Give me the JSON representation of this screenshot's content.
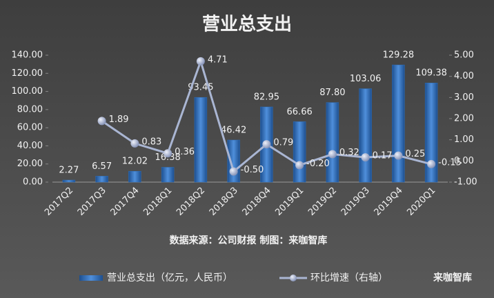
{
  "chart_data": {
    "type": "bar_line",
    "title": "营业总支出",
    "source": "数据来源：公司财报 制图：来咖智库",
    "watermark": "来咖智库",
    "categories": [
      "2017Q2",
      "2017Q3",
      "2017Q4",
      "2018Q1",
      "2018Q2",
      "2018Q3",
      "2018Q4",
      "2019Q1",
      "2019Q2",
      "2019Q3",
      "2019Q4",
      "2020Q1"
    ],
    "series": [
      {
        "name": "营业总支出（亿元，人民币）",
        "type": "bar",
        "color": "#2f6fba",
        "values": [
          2.27,
          6.57,
          12.02,
          16.38,
          93.45,
          46.42,
          82.95,
          66.66,
          87.8,
          103.06,
          129.28,
          109.38
        ],
        "value_labels": [
          "2.27",
          "6.57",
          "12.02",
          "16.38",
          "93.45",
          "46.42",
          "82.95",
          "66.66",
          "87.80",
          "103.06",
          "129.28",
          "109.38"
        ]
      },
      {
        "name": "环比增速（右轴）",
        "type": "line",
        "axis": "y2",
        "color": "#aab6d3",
        "values": [
          null,
          1.89,
          0.83,
          0.36,
          4.71,
          -0.5,
          0.79,
          -0.2,
          0.32,
          0.17,
          0.25,
          -0.15
        ],
        "value_labels": [
          null,
          "1.89",
          "0.83",
          "0.36",
          "4.71",
          "-0.50",
          "0.79",
          "-0.20",
          "0.32",
          "0.17",
          "0.25",
          "-0.15"
        ]
      }
    ],
    "ylim": [
      0,
      140
    ],
    "yticks": [
      {
        "value": 0,
        "label": "0.00"
      },
      {
        "value": 20,
        "label": "20.00"
      },
      {
        "value": 40,
        "label": "40.00"
      },
      {
        "value": 60,
        "label": "60.00"
      },
      {
        "value": 80,
        "label": "80.00"
      },
      {
        "value": 100,
        "label": "100.00"
      },
      {
        "value": 120,
        "label": "120.00"
      },
      {
        "value": 140,
        "label": "140.00"
      }
    ],
    "y2lim": [
      -1,
      5
    ],
    "y2ticks": [
      {
        "value": -1,
        "label": "-1.00"
      },
      {
        "value": 0,
        "label": "0.00"
      },
      {
        "value": 1,
        "label": "1.00"
      },
      {
        "value": 2,
        "label": "2.00"
      },
      {
        "value": 3,
        "label": "3.00"
      },
      {
        "value": 4,
        "label": "4.00"
      },
      {
        "value": 5,
        "label": "5.00"
      }
    ]
  }
}
